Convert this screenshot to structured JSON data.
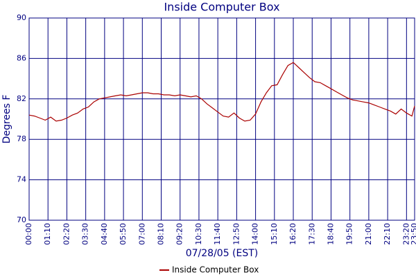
{
  "chart_data": {
    "type": "line",
    "title": "Inside Computer Box",
    "xlabel": "07/28/05 (EST)",
    "ylabel": "Degrees F",
    "x": [
      "00:00",
      "00:20",
      "00:40",
      "01:00",
      "01:20",
      "01:40",
      "02:00",
      "02:20",
      "02:40",
      "03:00",
      "03:20",
      "03:40",
      "04:00",
      "04:20",
      "04:40",
      "05:00",
      "05:20",
      "05:40",
      "06:00",
      "06:20",
      "06:40",
      "07:00",
      "07:20",
      "07:40",
      "08:00",
      "08:20",
      "08:40",
      "09:00",
      "09:20",
      "09:40",
      "10:00",
      "10:20",
      "10:40",
      "11:00",
      "11:20",
      "11:40",
      "12:00",
      "12:20",
      "12:40",
      "13:00",
      "13:20",
      "13:40",
      "14:00",
      "14:20",
      "14:40",
      "15:00",
      "15:20",
      "15:40",
      "16:00",
      "16:20",
      "16:40",
      "17:00",
      "17:20",
      "17:40",
      "18:00",
      "18:20",
      "18:40",
      "19:00",
      "19:20",
      "19:40",
      "20:00",
      "20:20",
      "20:40",
      "21:00",
      "21:20",
      "21:40",
      "22:00",
      "22:20",
      "22:40",
      "23:00",
      "23:20",
      "23:40",
      "23:50"
    ],
    "series": [
      {
        "name": "Inside Computer Box",
        "color": "#aa0000",
        "values": [
          80.4,
          80.3,
          80.1,
          79.9,
          80.2,
          79.8,
          79.9,
          80.1,
          80.4,
          80.6,
          81.0,
          81.2,
          81.7,
          82.0,
          82.1,
          82.2,
          82.3,
          82.4,
          82.3,
          82.4,
          82.5,
          82.6,
          82.6,
          82.5,
          82.5,
          82.4,
          82.4,
          82.3,
          82.4,
          82.3,
          82.2,
          82.3,
          82.0,
          81.5,
          81.1,
          80.7,
          80.3,
          80.2,
          80.6,
          80.1,
          79.8,
          79.9,
          80.5,
          81.7,
          82.6,
          83.3,
          83.4,
          84.4,
          85.3,
          85.6,
          85.1,
          84.6,
          84.1,
          83.7,
          83.6,
          83.3,
          83.0,
          82.7,
          82.4,
          82.1,
          81.9,
          81.8,
          81.7,
          81.6,
          81.4,
          81.2,
          81.0,
          80.8,
          80.5,
          81.0,
          80.6,
          80.3,
          81.3
        ]
      }
    ],
    "xlim": [
      "00:00",
      "23:50"
    ],
    "xticks": [
      "00:00",
      "01:10",
      "02:20",
      "03:30",
      "04:40",
      "05:50",
      "07:00",
      "08:10",
      "09:20",
      "10:30",
      "11:40",
      "12:50",
      "14:00",
      "15:10",
      "16:20",
      "17:30",
      "18:40",
      "19:50",
      "21:00",
      "22:10",
      "23:20",
      "23:50"
    ],
    "ylim": [
      70,
      90
    ],
    "yticks": [
      70,
      74,
      78,
      82,
      86,
      90
    ],
    "grid": true,
    "legend": "bottom"
  }
}
